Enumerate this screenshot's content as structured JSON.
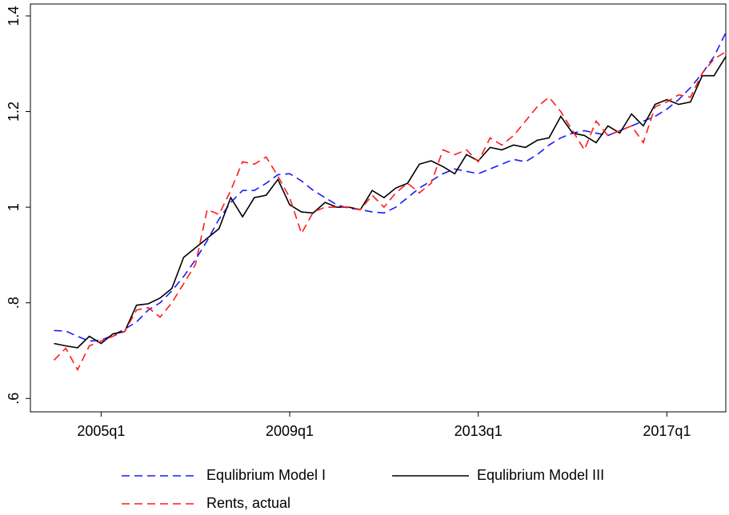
{
  "chart_data": {
    "type": "line",
    "x": [
      2004,
      2004.25,
      2004.5,
      2004.75,
      2005,
      2005.25,
      2005.5,
      2005.75,
      2006,
      2006.25,
      2006.5,
      2006.75,
      2007,
      2007.25,
      2007.5,
      2007.75,
      2008,
      2008.25,
      2008.5,
      2008.75,
      2009,
      2009.25,
      2009.5,
      2009.75,
      2010,
      2010.25,
      2010.5,
      2010.75,
      2011,
      2011.25,
      2011.5,
      2011.75,
      2012,
      2012.25,
      2012.5,
      2012.75,
      2013,
      2013.25,
      2013.5,
      2013.75,
      2014,
      2014.25,
      2014.5,
      2014.75,
      2015,
      2015.25,
      2015.5,
      2015.75,
      2016,
      2016.25,
      2016.5,
      2016.75,
      2017,
      2017.25,
      2017.5,
      2017.75,
      2018,
      2018.25
    ],
    "xlim": [
      2003.5,
      2018.25
    ],
    "xticks": [
      {
        "value": 2005,
        "label": "2005q1"
      },
      {
        "value": 2009,
        "label": "2009q1"
      },
      {
        "value": 2013,
        "label": "2013q1"
      },
      {
        "value": 2017,
        "label": "2017q1"
      }
    ],
    "ylim": [
      0.572,
      1.425
    ],
    "yticks": [
      {
        "value": 0.6,
        "label": ".6"
      },
      {
        "value": 0.8,
        "label": ".8"
      },
      1,
      1.2,
      1.4
    ],
    "series": [
      {
        "name": "Equlibrium Model I",
        "color": "#1a1aff",
        "style": "dashed",
        "values": [
          0.742,
          0.741,
          0.73,
          0.72,
          0.722,
          0.732,
          0.745,
          0.76,
          0.785,
          0.8,
          0.825,
          0.855,
          0.89,
          0.93,
          0.975,
          1.01,
          1.035,
          1.035,
          1.05,
          1.068,
          1.07,
          1.055,
          1.035,
          1.02,
          1.005,
          0.998,
          0.995,
          0.99,
          0.988,
          1.0,
          1.02,
          1.04,
          1.055,
          1.07,
          1.08,
          1.075,
          1.07,
          1.08,
          1.09,
          1.1,
          1.095,
          1.11,
          1.13,
          1.145,
          1.155,
          1.16,
          1.155,
          1.15,
          1.16,
          1.17,
          1.18,
          1.19,
          1.205,
          1.225,
          1.25,
          1.28,
          1.315,
          1.365
        ]
      },
      {
        "name": "Equlibrium Model III",
        "color": "#000000",
        "style": "solid",
        "values": [
          0.715,
          0.71,
          0.706,
          0.73,
          0.715,
          0.735,
          0.74,
          0.795,
          0.798,
          0.81,
          0.83,
          0.895,
          0.915,
          0.935,
          0.955,
          1.02,
          0.98,
          1.02,
          1.025,
          1.058,
          1.005,
          0.99,
          0.988,
          1.01,
          1.0,
          1.0,
          0.995,
          1.035,
          1.02,
          1.04,
          1.05,
          1.09,
          1.097,
          1.085,
          1.07,
          1.11,
          1.097,
          1.125,
          1.12,
          1.13,
          1.125,
          1.14,
          1.145,
          1.19,
          1.155,
          1.15,
          1.135,
          1.17,
          1.155,
          1.195,
          1.17,
          1.215,
          1.225,
          1.215,
          1.22,
          1.275,
          1.275,
          1.315
        ]
      },
      {
        "name": "Rents, actual",
        "color": "#ff1a1a",
        "style": "dashed",
        "values": [
          0.68,
          0.705,
          0.66,
          0.71,
          0.72,
          0.73,
          0.74,
          0.785,
          0.79,
          0.77,
          0.8,
          0.84,
          0.88,
          0.995,
          0.985,
          1.035,
          1.095,
          1.09,
          1.105,
          1.065,
          1.02,
          0.945,
          0.99,
          1.0,
          1.0,
          1.0,
          0.995,
          1.025,
          1.0,
          1.03,
          1.05,
          1.03,
          1.05,
          1.12,
          1.11,
          1.12,
          1.095,
          1.145,
          1.13,
          1.15,
          1.18,
          1.21,
          1.23,
          1.2,
          1.16,
          1.12,
          1.18,
          1.15,
          1.16,
          1.17,
          1.135,
          1.21,
          1.22,
          1.235,
          1.23,
          1.28,
          1.31,
          1.325
        ]
      }
    ],
    "grid": false
  }
}
